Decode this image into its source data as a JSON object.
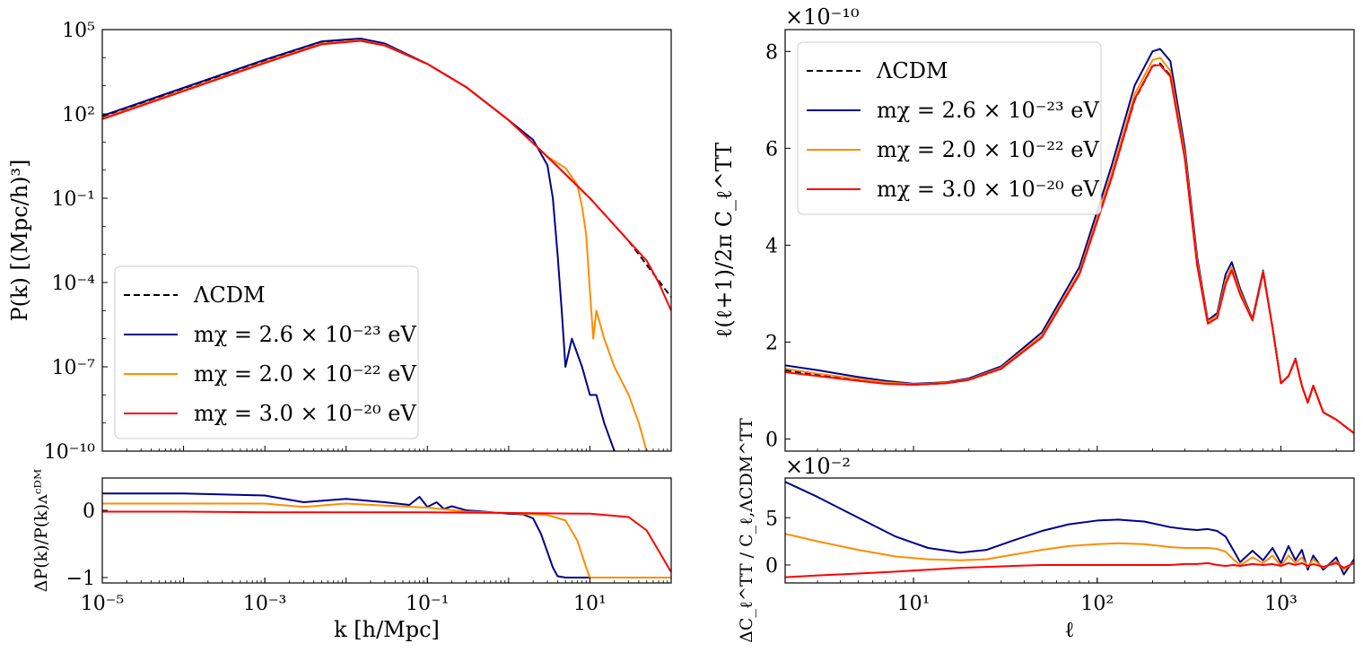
{
  "chart_data": [
    {
      "id": "pk_main",
      "type": "line",
      "xscale": "log",
      "yscale": "log",
      "xlim": [
        1e-05,
        100
      ],
      "ylim": [
        1e-10,
        100000.0
      ],
      "xlabel": "",
      "ylabel": "P(k) [(Mpc/h)³]",
      "xticks": [],
      "yticks": [
        {
          "v": 1e-10,
          "label": "10⁻¹⁰"
        },
        {
          "v": 1e-07,
          "label": "10⁻⁷"
        },
        {
          "v": 0.0001,
          "label": "10⁻⁴"
        },
        {
          "v": 0.1,
          "label": "10⁻¹"
        },
        {
          "v": 100,
          "label": "10²"
        },
        {
          "v": 100000,
          "label": "10⁵"
        }
      ],
      "legend": {
        "position": "lower-left",
        "entries": [
          {
            "label": "ΛCDM",
            "color": "#000000",
            "dashed": true
          },
          {
            "label": "mχ = 2.6 × 10⁻²³ eV",
            "color": "#00008b",
            "dashed": false
          },
          {
            "label": "mχ = 2.0 × 10⁻²² eV",
            "color": "#ff8c00",
            "dashed": false
          },
          {
            "label": "mχ = 3.0 × 10⁻²⁰ eV",
            "color": "#ff0000",
            "dashed": false
          }
        ]
      },
      "series": [
        {
          "name": "ΛCDM",
          "color": "#000000",
          "dashed": true,
          "x": [
            1e-05,
            0.0001,
            0.001,
            0.005,
            0.015,
            0.03,
            0.1,
            0.3,
            1,
            3,
            10,
            30,
            100
          ],
          "y": [
            80,
            800,
            8000,
            35000,
            45000,
            30000,
            6000,
            900,
            60,
            3,
            0.1,
            0.003,
            3e-05
          ]
        },
        {
          "name": "mχ = 2.6 × 10⁻²³ eV",
          "color": "#00008b",
          "dashed": false,
          "x": [
            1e-05,
            0.0001,
            0.001,
            0.005,
            0.015,
            0.03,
            0.1,
            0.3,
            1,
            2,
            3,
            3.5,
            4,
            4.5,
            5,
            6,
            8,
            10,
            12,
            15,
            20
          ],
          "y": [
            85,
            850,
            8500,
            38000,
            48000,
            32000,
            6000,
            900,
            60,
            12,
            1.5,
            0.1,
            0.001,
            1e-05,
            1e-07,
            1e-06,
            1e-07,
            1e-08,
            1e-08,
            1e-09,
            1e-10
          ]
        },
        {
          "name": "mχ = 2.0 × 10⁻²² eV",
          "color": "#ff8c00",
          "dashed": false,
          "x": [
            1e-05,
            0.0001,
            0.001,
            0.005,
            0.015,
            0.03,
            0.1,
            0.3,
            1,
            3,
            5,
            7,
            8,
            9,
            10,
            11,
            12,
            15,
            20,
            30,
            40,
            50
          ],
          "y": [
            70,
            700,
            7000,
            32000,
            42000,
            28000,
            6000,
            900,
            60,
            3,
            1.2,
            0.3,
            0.05,
            0.005,
            5e-05,
            1e-06,
            1e-05,
            1e-06,
            1e-07,
            1e-08,
            1e-09,
            1e-10
          ]
        },
        {
          "name": "mχ = 3.0 × 10⁻²⁰ eV",
          "color": "#ff0000",
          "dashed": false,
          "x": [
            1e-05,
            0.0001,
            0.001,
            0.005,
            0.015,
            0.03,
            0.1,
            0.3,
            1,
            3,
            10,
            30,
            50,
            70,
            100
          ],
          "y": [
            65,
            650,
            6500,
            30000,
            40000,
            27000,
            6000,
            900,
            60,
            3,
            0.1,
            0.003,
            0.0006,
            0.0001,
            1e-05
          ]
        }
      ]
    },
    {
      "id": "pk_ratio",
      "type": "line",
      "xscale": "log",
      "yscale": "linear",
      "xlim": [
        1e-05,
        100
      ],
      "ylim": [
        -1.08,
        0.48
      ],
      "xlabel": "k [h/Mpc]",
      "ylabel": "ΔP(k)/P(k)ᴧᶜᴰᴹ",
      "xticks": [
        {
          "v": 1e-05,
          "label": "10⁻⁵"
        },
        {
          "v": 0.001,
          "label": "10⁻³"
        },
        {
          "v": 0.1,
          "label": "10⁻¹"
        },
        {
          "v": 10,
          "label": "10¹"
        }
      ],
      "yticks": [
        {
          "v": -1,
          "label": "−1"
        },
        {
          "v": 0,
          "label": "0"
        }
      ],
      "series": [
        {
          "name": "mχ = 2.6 × 10⁻²³ eV",
          "color": "#00008b",
          "x": [
            1e-05,
            0.0001,
            0.001,
            0.003,
            0.01,
            0.03,
            0.06,
            0.08,
            0.1,
            0.13,
            0.16,
            0.2,
            0.3,
            0.5,
            1,
            1.5,
            2,
            2.5,
            3,
            3.5,
            4,
            5,
            6,
            10,
            100
          ],
          "y": [
            0.25,
            0.25,
            0.22,
            0.12,
            0.17,
            0.12,
            0.08,
            0.2,
            0.05,
            0.12,
            0.02,
            0.06,
            0.0,
            -0.02,
            -0.05,
            -0.06,
            -0.12,
            -0.35,
            -0.62,
            -0.85,
            -0.98,
            -1.0,
            -1.0,
            -1.0,
            -1.0
          ]
        },
        {
          "name": "mχ = 2.0 × 10⁻²² eV",
          "color": "#ff8c00",
          "x": [
            1e-05,
            0.0001,
            0.001,
            0.003,
            0.01,
            0.03,
            0.1,
            0.3,
            1,
            3,
            5,
            7,
            9,
            10,
            12,
            100
          ],
          "y": [
            0.1,
            0.1,
            0.1,
            0.05,
            0.1,
            0.07,
            0.04,
            -0.02,
            -0.04,
            -0.07,
            -0.15,
            -0.45,
            -0.85,
            -1.0,
            -1.0,
            -1.0
          ]
        },
        {
          "name": "mχ = 3.0 × 10⁻²⁰ eV",
          "color": "#ff0000",
          "x": [
            1e-05,
            0.0001,
            0.001,
            0.01,
            0.1,
            1,
            10,
            30,
            50,
            70,
            100
          ],
          "y": [
            -0.02,
            -0.02,
            -0.03,
            -0.03,
            -0.03,
            -0.04,
            -0.05,
            -0.1,
            -0.3,
            -0.6,
            -0.92
          ]
        }
      ]
    },
    {
      "id": "cl_main",
      "type": "line",
      "xscale": "log",
      "yscale": "linear",
      "xlim": [
        2,
        2500
      ],
      "ylim": [
        -0.25,
        8.45
      ],
      "multiplier": "×10⁻¹⁰",
      "xlabel": "",
      "ylabel": "ℓ(ℓ+1)/2π C_ℓ^TT",
      "xticks": [],
      "yticks": [
        {
          "v": 0,
          "label": "0"
        },
        {
          "v": 2,
          "label": "2"
        },
        {
          "v": 4,
          "label": "4"
        },
        {
          "v": 6,
          "label": "6"
        },
        {
          "v": 8,
          "label": "8"
        }
      ],
      "legend": {
        "position": "upper-left",
        "entries": [
          {
            "label": "ΛCDM",
            "color": "#000000",
            "dashed": true
          },
          {
            "label": "mχ = 2.6 × 10⁻²³ eV",
            "color": "#00008b",
            "dashed": false
          },
          {
            "label": "mχ = 2.0 × 10⁻²² eV",
            "color": "#ff8c00",
            "dashed": false
          },
          {
            "label": "mχ = 3.0 × 10⁻²⁰ eV",
            "color": "#ff0000",
            "dashed": false
          }
        ]
      },
      "series": [
        {
          "name": "ΛCDM",
          "color": "#000000",
          "dashed": true,
          "x": [
            2,
            3,
            5,
            7,
            10,
            15,
            20,
            30,
            50,
            80,
            120,
            160,
            200,
            220,
            250,
            300,
            350,
            400,
            450,
            500,
            540,
            600,
            700,
            800,
            900,
            1000,
            1100,
            1200,
            1300,
            1400,
            1500,
            1700,
            2000,
            2500
          ],
          "y": [
            1.42,
            1.32,
            1.22,
            1.15,
            1.12,
            1.15,
            1.22,
            1.45,
            2.1,
            3.4,
            5.4,
            7.0,
            7.7,
            7.75,
            7.5,
            5.8,
            3.6,
            2.4,
            2.5,
            3.2,
            3.5,
            3.0,
            2.45,
            3.45,
            2.3,
            1.15,
            1.3,
            1.65,
            1.1,
            0.75,
            1.1,
            0.55,
            0.4,
            0.12
          ]
        },
        {
          "name": "mχ = 2.6 × 10⁻²³ eV",
          "color": "#00008b",
          "dashed": false,
          "x": [
            2,
            3,
            5,
            7,
            10,
            15,
            20,
            30,
            50,
            80,
            120,
            160,
            200,
            220,
            250,
            300,
            350,
            400,
            450,
            500,
            540,
            600,
            700,
            800,
            900,
            1000,
            1100,
            1200,
            1300,
            1400,
            1500,
            1700,
            2000,
            2500
          ],
          "y": [
            1.52,
            1.42,
            1.28,
            1.2,
            1.14,
            1.17,
            1.25,
            1.5,
            2.2,
            3.55,
            5.65,
            7.3,
            8.0,
            8.05,
            7.8,
            6.0,
            3.75,
            2.45,
            2.6,
            3.4,
            3.65,
            3.1,
            2.48,
            3.48,
            2.3,
            1.15,
            1.3,
            1.66,
            1.1,
            0.75,
            1.1,
            0.55,
            0.4,
            0.12
          ]
        },
        {
          "name": "mχ = 2.0 × 10⁻²² eV",
          "color": "#ff8c00",
          "dashed": false,
          "x": [
            2,
            3,
            5,
            7,
            10,
            15,
            20,
            30,
            50,
            80,
            120,
            160,
            200,
            220,
            250,
            300,
            350,
            400,
            450,
            500,
            540,
            600,
            700,
            800,
            900,
            1000,
            1100,
            1200,
            1300,
            1400,
            1500,
            1700,
            2000,
            2500
          ],
          "y": [
            1.45,
            1.35,
            1.24,
            1.17,
            1.13,
            1.16,
            1.23,
            1.47,
            2.14,
            3.45,
            5.5,
            7.12,
            7.82,
            7.87,
            7.6,
            5.88,
            3.66,
            2.42,
            2.55,
            3.28,
            3.55,
            3.04,
            2.46,
            3.46,
            2.3,
            1.15,
            1.3,
            1.65,
            1.1,
            0.75,
            1.1,
            0.55,
            0.4,
            0.12
          ]
        },
        {
          "name": "mχ = 3.0 × 10⁻²⁰ eV",
          "color": "#ff0000",
          "dashed": false,
          "x": [
            2,
            3,
            5,
            7,
            10,
            15,
            20,
            30,
            50,
            80,
            120,
            160,
            200,
            220,
            250,
            300,
            350,
            400,
            450,
            500,
            540,
            600,
            700,
            800,
            900,
            1000,
            1100,
            1200,
            1300,
            1400,
            1500,
            1700,
            2000,
            2500
          ],
          "y": [
            1.38,
            1.3,
            1.2,
            1.14,
            1.12,
            1.15,
            1.22,
            1.45,
            2.1,
            3.4,
            5.4,
            7.02,
            7.7,
            7.72,
            7.48,
            5.78,
            3.58,
            2.38,
            2.5,
            3.2,
            3.48,
            2.98,
            2.45,
            3.44,
            2.3,
            1.15,
            1.3,
            1.65,
            1.1,
            0.75,
            1.1,
            0.55,
            0.4,
            0.12
          ]
        }
      ]
    },
    {
      "id": "cl_ratio",
      "type": "line",
      "xscale": "log",
      "yscale": "linear",
      "xlim": [
        2,
        2500
      ],
      "ylim": [
        -1.9,
        9.2
      ],
      "multiplier": "×10⁻²",
      "xlabel": "ℓ",
      "ylabel": "ΔC_ℓ^TT / C_ℓ,ΛCDM^TT",
      "xticks": [
        {
          "v": 10,
          "label": "10¹"
        },
        {
          "v": 100,
          "label": "10²"
        },
        {
          "v": 1000,
          "label": "10³"
        }
      ],
      "yticks": [
        {
          "v": 0,
          "label": "0"
        },
        {
          "v": 5,
          "label": "5"
        }
      ],
      "series": [
        {
          "name": "mχ = 2.6 × 10⁻²³ eV",
          "color": "#00008b",
          "x": [
            2,
            3,
            5,
            8,
            12,
            18,
            25,
            35,
            50,
            70,
            100,
            130,
            180,
            250,
            300,
            350,
            400,
            450,
            500,
            550,
            600,
            700,
            800,
            900,
            1000,
            1100,
            1200,
            1300,
            1400,
            1500,
            1700,
            2000,
            2200,
            2500
          ],
          "y": [
            8.8,
            7.2,
            5.0,
            3.0,
            1.8,
            1.3,
            1.6,
            2.6,
            3.6,
            4.3,
            4.7,
            4.8,
            4.6,
            4.0,
            3.8,
            3.7,
            3.8,
            3.6,
            3.0,
            1.6,
            0.3,
            1.5,
            0.5,
            1.8,
            0.2,
            2.0,
            0.5,
            1.6,
            -0.5,
            1.0,
            -0.5,
            0.8,
            -1.0,
            0.6
          ]
        },
        {
          "name": "mχ = 2.0 × 10⁻²² eV",
          "color": "#ff8c00",
          "x": [
            2,
            3,
            5,
            8,
            12,
            18,
            25,
            35,
            50,
            70,
            100,
            130,
            180,
            250,
            300,
            350,
            400,
            450,
            500,
            550,
            600,
            700,
            800,
            900,
            1000,
            1100,
            1200,
            1300,
            1400,
            1500,
            1700,
            2000,
            2200,
            2500
          ],
          "y": [
            3.3,
            2.5,
            1.6,
            0.9,
            0.6,
            0.5,
            0.6,
            1.1,
            1.6,
            2.0,
            2.2,
            2.3,
            2.2,
            1.9,
            1.8,
            1.8,
            1.8,
            1.7,
            1.4,
            0.6,
            0.0,
            0.8,
            0.2,
            1.0,
            -0.1,
            1.0,
            0.2,
            0.8,
            -0.2,
            0.6,
            -0.3,
            0.4,
            -0.5,
            0.3
          ]
        },
        {
          "name": "mχ = 3.0 × 10⁻²⁰ eV",
          "color": "#ff0000",
          "x": [
            2,
            3,
            5,
            8,
            12,
            18,
            25,
            35,
            50,
            70,
            100,
            130,
            180,
            250,
            300,
            350,
            400,
            450,
            500,
            550,
            600,
            700,
            800,
            900,
            1000,
            1100,
            1200,
            1300,
            1400,
            1500,
            1700,
            2000,
            2200,
            2500
          ],
          "y": [
            -1.3,
            -1.1,
            -0.9,
            -0.7,
            -0.5,
            -0.3,
            -0.2,
            -0.1,
            0.0,
            0.0,
            0.0,
            0.0,
            0.0,
            0.0,
            0.1,
            0.1,
            0.2,
            0.0,
            -0.1,
            0.0,
            -0.1,
            0.1,
            0.0,
            0.1,
            -0.1,
            0.2,
            0.0,
            0.2,
            -0.1,
            0.1,
            -0.2,
            0.2,
            -0.3,
            0.2
          ]
        }
      ]
    }
  ]
}
